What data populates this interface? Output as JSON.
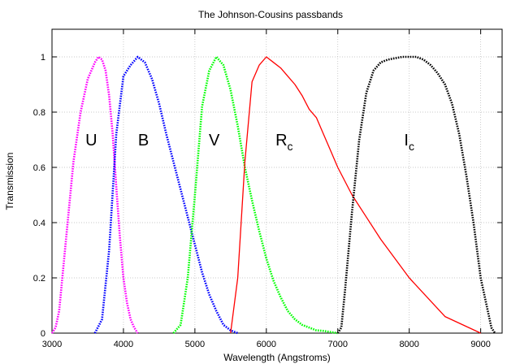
{
  "chart_data": {
    "type": "line",
    "title": "The Johnson-Cousins passbands",
    "xlabel": "Wavelength (Angstroms)",
    "ylabel": "Transmission",
    "xlim": [
      3000,
      9300
    ],
    "ylim": [
      0,
      1.1
    ],
    "x_ticks": [
      3000,
      4000,
      5000,
      6000,
      7000,
      8000,
      9000
    ],
    "y_ticks": [
      0,
      0.2,
      0.4,
      0.6,
      0.8,
      1
    ],
    "grid": true,
    "legend": "none",
    "series": [
      {
        "name": "U",
        "label_sub": "",
        "label_x": 3550,
        "label_y": 0.7,
        "color": "#ff00ff",
        "style": "dotted",
        "points": [
          [
            3000,
            0
          ],
          [
            3050,
            0.02
          ],
          [
            3100,
            0.08
          ],
          [
            3200,
            0.35
          ],
          [
            3300,
            0.62
          ],
          [
            3400,
            0.8
          ],
          [
            3500,
            0.92
          ],
          [
            3600,
            0.98
          ],
          [
            3650,
            1.0
          ],
          [
            3700,
            0.99
          ],
          [
            3750,
            0.95
          ],
          [
            3800,
            0.86
          ],
          [
            3850,
            0.72
          ],
          [
            3900,
            0.53
          ],
          [
            3950,
            0.35
          ],
          [
            4000,
            0.2
          ],
          [
            4050,
            0.11
          ],
          [
            4100,
            0.05
          ],
          [
            4150,
            0.02
          ],
          [
            4200,
            0
          ]
        ]
      },
      {
        "name": "B",
        "label_sub": "",
        "label_x": 4280,
        "label_y": 0.7,
        "color": "#0000ff",
        "style": "dotted",
        "points": [
          [
            3600,
            0
          ],
          [
            3700,
            0.05
          ],
          [
            3800,
            0.3
          ],
          [
            3900,
            0.72
          ],
          [
            4000,
            0.93
          ],
          [
            4100,
            0.97
          ],
          [
            4200,
            1.0
          ],
          [
            4300,
            0.98
          ],
          [
            4400,
            0.92
          ],
          [
            4500,
            0.83
          ],
          [
            4600,
            0.72
          ],
          [
            4700,
            0.62
          ],
          [
            4800,
            0.52
          ],
          [
            4900,
            0.42
          ],
          [
            5000,
            0.32
          ],
          [
            5100,
            0.22
          ],
          [
            5200,
            0.14
          ],
          [
            5300,
            0.08
          ],
          [
            5400,
            0.03
          ],
          [
            5500,
            0.01
          ],
          [
            5600,
            0
          ]
        ]
      },
      {
        "name": "V",
        "label_sub": "",
        "label_x": 5270,
        "label_y": 0.7,
        "color": "#00ff00",
        "style": "dotted",
        "points": [
          [
            4700,
            0
          ],
          [
            4800,
            0.03
          ],
          [
            4900,
            0.2
          ],
          [
            5000,
            0.5
          ],
          [
            5100,
            0.82
          ],
          [
            5200,
            0.95
          ],
          [
            5300,
            1.0
          ],
          [
            5400,
            0.97
          ],
          [
            5500,
            0.88
          ],
          [
            5600,
            0.75
          ],
          [
            5700,
            0.6
          ],
          [
            5800,
            0.48
          ],
          [
            5900,
            0.37
          ],
          [
            6000,
            0.27
          ],
          [
            6100,
            0.19
          ],
          [
            6200,
            0.13
          ],
          [
            6300,
            0.08
          ],
          [
            6400,
            0.05
          ],
          [
            6500,
            0.03
          ],
          [
            6600,
            0.02
          ],
          [
            6700,
            0.01
          ],
          [
            6800,
            0.008
          ],
          [
            7000,
            0
          ]
        ]
      },
      {
        "name": "R",
        "label_sub": "c",
        "label_x": 6250,
        "label_y": 0.7,
        "color": "#ff0000",
        "style": "solid",
        "points": [
          [
            5500,
            0
          ],
          [
            5600,
            0.2
          ],
          [
            5700,
            0.62
          ],
          [
            5800,
            0.91
          ],
          [
            5900,
            0.97
          ],
          [
            6000,
            1.0
          ],
          [
            6100,
            0.98
          ],
          [
            6200,
            0.96
          ],
          [
            6300,
            0.93
          ],
          [
            6400,
            0.9
          ],
          [
            6500,
            0.86
          ],
          [
            6600,
            0.81
          ],
          [
            6700,
            0.78
          ],
          [
            6800,
            0.72
          ],
          [
            6900,
            0.66
          ],
          [
            7000,
            0.6
          ],
          [
            7200,
            0.5
          ],
          [
            7400,
            0.42
          ],
          [
            7600,
            0.34
          ],
          [
            8000,
            0.2
          ],
          [
            8500,
            0.06
          ],
          [
            9000,
            0
          ]
        ]
      },
      {
        "name": "I",
        "label_sub": "c",
        "label_x": 8000,
        "label_y": 0.7,
        "color": "#000000",
        "style": "dotted",
        "points": [
          [
            7000,
            0
          ],
          [
            7050,
            0.02
          ],
          [
            7100,
            0.15
          ],
          [
            7200,
            0.44
          ],
          [
            7300,
            0.7
          ],
          [
            7400,
            0.87
          ],
          [
            7500,
            0.95
          ],
          [
            7600,
            0.98
          ],
          [
            7700,
            0.99
          ],
          [
            7800,
            0.995
          ],
          [
            7900,
            1.0
          ],
          [
            8000,
            1.0
          ],
          [
            8100,
            1.0
          ],
          [
            8200,
            0.99
          ],
          [
            8300,
            0.97
          ],
          [
            8400,
            0.94
          ],
          [
            8500,
            0.9
          ],
          [
            8600,
            0.83
          ],
          [
            8700,
            0.72
          ],
          [
            8800,
            0.57
          ],
          [
            8900,
            0.4
          ],
          [
            9000,
            0.2
          ],
          [
            9100,
            0.08
          ],
          [
            9150,
            0.02
          ],
          [
            9200,
            0
          ]
        ]
      }
    ]
  }
}
